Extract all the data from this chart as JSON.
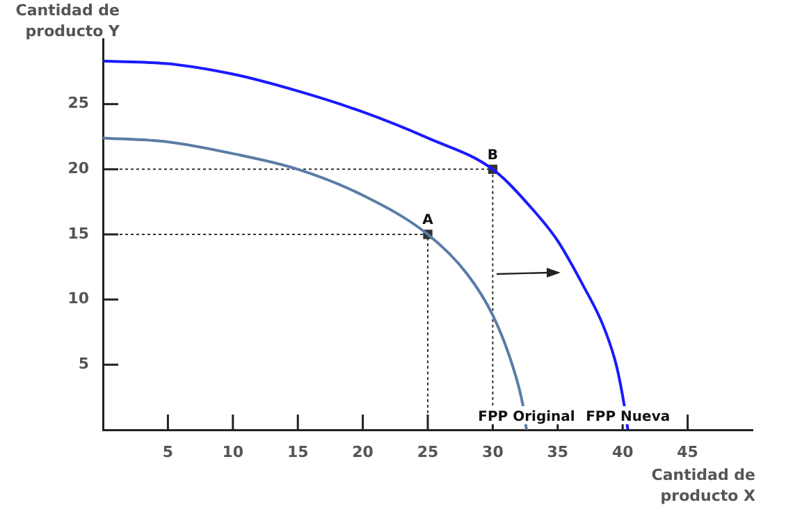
{
  "chart_data": {
    "type": "line",
    "xlabel": "Cantidad de producto X",
    "ylabel": "Cantidad de producto Y",
    "xlim": [
      0,
      50
    ],
    "ylim": [
      0,
      30
    ],
    "xticks": [
      5,
      10,
      15,
      20,
      25,
      30,
      35,
      40,
      45
    ],
    "yticks": [
      5,
      10,
      15,
      20,
      25
    ],
    "grid": false,
    "legend": false,
    "series": [
      {
        "name": "FPP Original",
        "color": "#5a7ca6",
        "x": [
          0,
          5,
          10,
          15,
          20,
          25,
          28,
          30,
          31.5,
          32.3,
          32.6
        ],
        "values": [
          22.4,
          22.1,
          21.2,
          20,
          18,
          15,
          12,
          8.8,
          5,
          2,
          0
        ]
      },
      {
        "name": "FPP Nueva",
        "color": "#1a1aff",
        "x": [
          0,
          5,
          10,
          15,
          20,
          25,
          30,
          33,
          35,
          37,
          38.5,
          39.5,
          40.1,
          40.4
        ],
        "values": [
          28.3,
          28.1,
          27.3,
          26,
          24.4,
          22.4,
          20,
          17,
          14.5,
          11,
          8,
          5,
          2,
          0
        ]
      },
      {
        "color": "#333333",
        "line_style": "dotted",
        "x": [
          0,
          25,
          25
        ],
        "values": [
          15,
          15,
          0
        ]
      },
      {
        "color": "#333333",
        "line_style": "dotted",
        "x": [
          0,
          30,
          30
        ],
        "values": [
          20,
          20,
          0
        ]
      },
      {
        "name": "A",
        "type": "scatter",
        "marker": "square",
        "color": "#333333",
        "x": [
          25
        ],
        "values": [
          15
        ]
      },
      {
        "name": "B",
        "type": "scatter",
        "marker": "square",
        "color": "#333333",
        "x": [
          30
        ],
        "values": [
          20
        ]
      }
    ]
  }
}
